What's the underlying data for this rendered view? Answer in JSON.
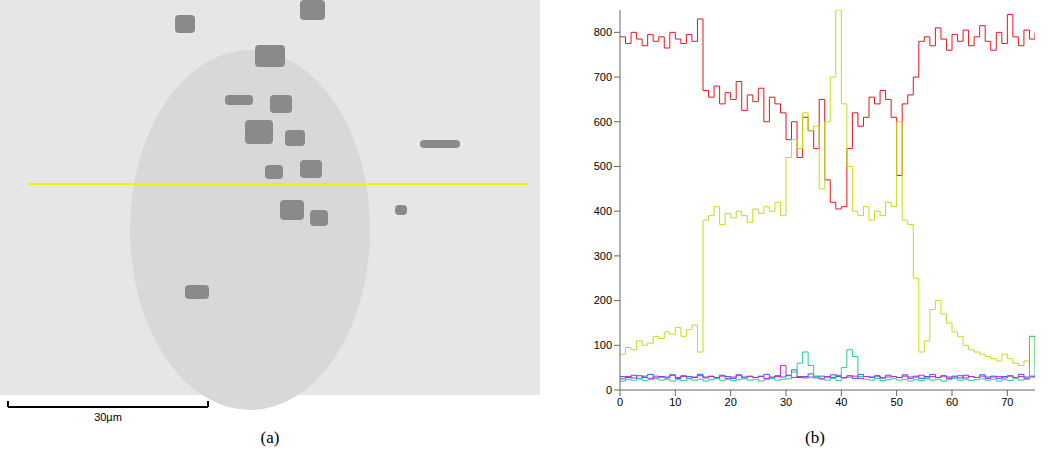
{
  "image_panel": {
    "label": "(a)",
    "scale_bar_label": "30µm"
  },
  "chart_data": {
    "type": "line",
    "label": "(b)",
    "line_style": "step",
    "grid": false,
    "xlim": [
      0,
      75
    ],
    "xticks": [
      0,
      10,
      20,
      30,
      40,
      50,
      60,
      70
    ],
    "ylim": [
      0,
      850
    ],
    "yticks": [
      0,
      100,
      200,
      300,
      400,
      500,
      600,
      700,
      800
    ],
    "x": [
      0,
      1,
      2,
      3,
      4,
      5,
      6,
      7,
      8,
      9,
      10,
      11,
      12,
      13,
      14,
      15,
      16,
      17,
      18,
      19,
      20,
      21,
      22,
      23,
      24,
      25,
      26,
      27,
      28,
      29,
      30,
      31,
      32,
      33,
      34,
      35,
      36,
      37,
      38,
      39,
      40,
      41,
      42,
      43,
      44,
      45,
      46,
      47,
      48,
      49,
      50,
      51,
      52,
      53,
      54,
      55,
      56,
      57,
      58,
      59,
      60,
      61,
      62,
      63,
      64,
      65,
      66,
      67,
      68,
      69,
      70,
      71,
      72,
      73,
      74,
      75
    ],
    "series": [
      {
        "color": "#e8141c",
        "values": [
          790,
          775,
          800,
          785,
          770,
          795,
          780,
          790,
          765,
          800,
          785,
          775,
          795,
          780,
          830,
          670,
          655,
          680,
          640,
          665,
          650,
          690,
          625,
          660,
          645,
          675,
          600,
          655,
          640,
          620,
          560,
          600,
          520,
          610,
          580,
          540,
          650,
          470,
          420,
          405,
          410,
          540,
          620,
          590,
          610,
          655,
          640,
          670,
          650,
          610,
          480,
          640,
          660,
          700,
          780,
          790,
          770,
          810,
          785,
          760,
          795,
          780,
          805,
          770,
          790,
          815,
          780,
          760,
          800,
          775,
          840,
          790,
          770,
          805,
          785,
          800
        ]
      },
      {
        "color": "#c4dc1a",
        "values": [
          80,
          95,
          90,
          110,
          100,
          105,
          120,
          115,
          130,
          125,
          140,
          120,
          135,
          145,
          85,
          380,
          390,
          410,
          370,
          395,
          385,
          400,
          390,
          375,
          405,
          395,
          410,
          400,
          420,
          390,
          520,
          560,
          540,
          620,
          580,
          590,
          450,
          600,
          700,
          850,
          640,
          500,
          400,
          390,
          410,
          380,
          400,
          390,
          420,
          410,
          600,
          380,
          370,
          250,
          85,
          110,
          180,
          200,
          170,
          150,
          130,
          120,
          100,
          90,
          85,
          80,
          75,
          70,
          65,
          80,
          70,
          60,
          55,
          65,
          120,
          60
        ]
      },
      {
        "color": "#2060ff",
        "values": [
          30,
          28,
          33,
          25,
          31,
          35,
          27,
          30,
          29,
          34,
          26,
          32,
          30,
          28,
          35,
          29,
          31,
          27,
          33,
          30,
          26,
          34,
          29,
          31,
          28,
          30,
          35,
          27,
          32,
          29,
          33,
          45,
          28,
          30,
          36,
          27,
          31,
          29,
          34,
          30,
          28,
          32,
          26,
          35,
          30,
          29,
          31,
          27,
          33,
          30,
          28,
          34,
          29,
          31,
          26,
          30,
          35,
          28,
          32,
          29,
          31,
          27,
          33,
          30,
          28,
          34,
          29,
          31,
          26,
          30,
          32,
          28,
          35,
          29,
          31,
          30
        ]
      },
      {
        "color": "#d020d0",
        "values": [
          25,
          30,
          27,
          32,
          28,
          26,
          31,
          29,
          27,
          33,
          28,
          30,
          26,
          29,
          32,
          27,
          30,
          28,
          31,
          26,
          29,
          33,
          27,
          30,
          28,
          31,
          26,
          29,
          30,
          55,
          32,
          28,
          30,
          27,
          29,
          31,
          26,
          30,
          28,
          33,
          27,
          29,
          31,
          26,
          30,
          28,
          32,
          27,
          29,
          30,
          28,
          31,
          26,
          29,
          33,
          27,
          30,
          28,
          31,
          26,
          29,
          32,
          27,
          30,
          28,
          31,
          26,
          29,
          30,
          27,
          31,
          28,
          30,
          26,
          29,
          28
        ]
      },
      {
        "color": "#20d090",
        "values": [
          20,
          24,
          22,
          26,
          21,
          23,
          25,
          22,
          24,
          20,
          23,
          21,
          25,
          22,
          24,
          20,
          23,
          26,
          22,
          24,
          21,
          23,
          25,
          22,
          24,
          20,
          23,
          26,
          22,
          24,
          25,
          40,
          60,
          85,
          55,
          30,
          24,
          22,
          26,
          21,
          50,
          90,
          75,
          30,
          24,
          22,
          26,
          21,
          23,
          25,
          22,
          24,
          20,
          23,
          21,
          25,
          22,
          24,
          20,
          23,
          26,
          22,
          24,
          21,
          23,
          25,
          22,
          24,
          20,
          23,
          21,
          25,
          22,
          24,
          120,
          30
        ]
      }
    ]
  }
}
